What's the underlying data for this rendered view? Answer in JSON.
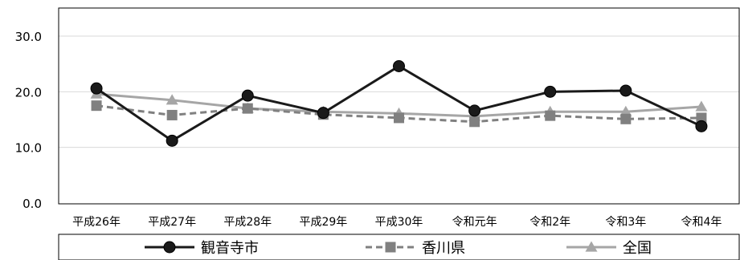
{
  "chart_data": {
    "type": "line",
    "title": "",
    "xlabel": "",
    "ylabel": "",
    "categories": [
      "平成26年",
      "平成27年",
      "平成28年",
      "平成29年",
      "平成30年",
      "令和元年",
      "令和2年",
      "令和3年",
      "令和4年"
    ],
    "ylim": [
      0,
      30
    ],
    "yticks": [
      "0.0",
      "10.0",
      "20.0",
      "30.0"
    ],
    "grid": true,
    "legend_position": "bottom",
    "series": [
      {
        "name": "観音寺市",
        "values": [
          20.6,
          11.2,
          19.3,
          16.2,
          24.6,
          16.6,
          20.0,
          20.2,
          13.8
        ],
        "color": "#1a1a1a",
        "marker": "circle",
        "dash": "solid"
      },
      {
        "name": "香川県",
        "values": [
          17.5,
          15.8,
          17.0,
          15.9,
          15.3,
          14.6,
          15.7,
          15.1,
          15.3
        ],
        "color": "#808080",
        "marker": "square",
        "dash": "dashed"
      },
      {
        "name": "全国",
        "values": [
          19.6,
          18.5,
          17.0,
          16.4,
          16.1,
          15.6,
          16.4,
          16.4,
          17.3
        ],
        "color": "#a6a6a6",
        "marker": "triangle",
        "dash": "solid"
      }
    ]
  }
}
